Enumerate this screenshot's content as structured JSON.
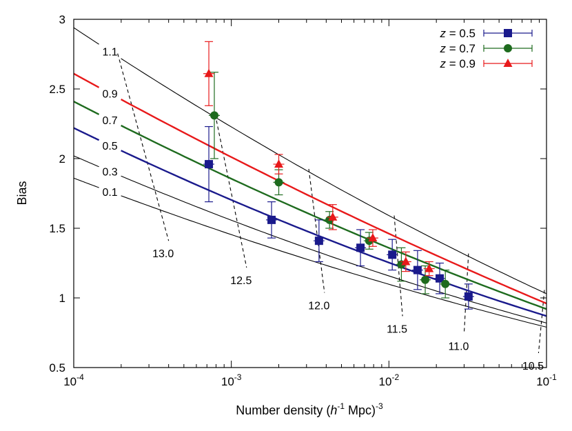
{
  "chart_data": {
    "type": "scatter",
    "xlabel_parts": [
      "Number density (",
      "h",
      "-1",
      " Mpc)",
      "-3"
    ],
    "ylabel": "Bias",
    "xscale": "log",
    "xlim": [
      0.0001,
      0.1
    ],
    "ylim": [
      0.5,
      3
    ],
    "x_ticks": [
      {
        "value": 0.0001,
        "base": "10",
        "exp": "-4"
      },
      {
        "value": 0.001,
        "base": "10",
        "exp": "-3"
      },
      {
        "value": 0.01,
        "base": "10",
        "exp": "-2"
      },
      {
        "value": 0.1,
        "base": "10",
        "exp": "-1"
      }
    ],
    "y_ticks": [
      {
        "value": 0.5,
        "label": "0.5"
      },
      {
        "value": 1,
        "label": "1"
      },
      {
        "value": 1.5,
        "label": "1.5"
      },
      {
        "value": 2,
        "label": "2"
      },
      {
        "value": 2.5,
        "label": "2.5"
      },
      {
        "value": 3,
        "label": "3"
      }
    ],
    "grid": false,
    "legend_position": "top-right",
    "series": [
      {
        "z_symbol": "z",
        "label": " = 0.5",
        "color": "#1a1a8c",
        "marker": "square",
        "points": [
          {
            "x": 0.00072,
            "y": 1.96,
            "yerr": 0.27
          },
          {
            "x": 0.0018,
            "y": 1.56,
            "yerr": 0.13
          },
          {
            "x": 0.0036,
            "y": 1.41,
            "yerr": 0.15
          },
          {
            "x": 0.0066,
            "y": 1.36,
            "yerr": 0.13
          },
          {
            "x": 0.0105,
            "y": 1.31,
            "yerr": 0.11
          },
          {
            "x": 0.0152,
            "y": 1.2,
            "yerr": 0.14
          },
          {
            "x": 0.021,
            "y": 1.14,
            "yerr": 0.11
          },
          {
            "x": 0.032,
            "y": 1.01,
            "yerr": 0.09
          }
        ]
      },
      {
        "z_symbol": "z",
        "label": " = 0.7",
        "color": "#1e6b1e",
        "marker": "circle",
        "points": [
          {
            "x": 0.00078,
            "y": 2.31,
            "yerr": 0.31
          },
          {
            "x": 0.002,
            "y": 1.83,
            "yerr": 0.09
          },
          {
            "x": 0.0042,
            "y": 1.56,
            "yerr": 0.06
          },
          {
            "x": 0.0075,
            "y": 1.41,
            "yerr": 0.06
          },
          {
            "x": 0.012,
            "y": 1.24,
            "yerr": 0.12
          },
          {
            "x": 0.017,
            "y": 1.13,
            "yerr": 0.1
          },
          {
            "x": 0.0228,
            "y": 1.1,
            "yerr": 0.1
          }
        ]
      },
      {
        "z_symbol": "z",
        "label": " = 0.9",
        "color": "#e8191a",
        "marker": "triangle",
        "points": [
          {
            "x": 0.00072,
            "y": 2.61,
            "yerr": 0.23
          },
          {
            "x": 0.002,
            "y": 1.96,
            "yerr": 0.07
          },
          {
            "x": 0.0044,
            "y": 1.58,
            "yerr": 0.09
          },
          {
            "x": 0.0079,
            "y": 1.43,
            "yerr": 0.06
          },
          {
            "x": 0.0128,
            "y": 1.26,
            "yerr": 0.07
          },
          {
            "x": 0.018,
            "y": 1.21,
            "yerr": 0.05
          }
        ]
      }
    ],
    "model_curves": [
      {
        "label": "1.1",
        "color": "#000000",
        "b_low": 2.94,
        "b_mid": 1.9,
        "b_high": 1.03
      },
      {
        "label": "0.9",
        "color": "#e8191a",
        "b_low": 2.61,
        "b_mid": 1.73,
        "b_high": 0.96
      },
      {
        "label": "0.7",
        "color": "#1e6b1e",
        "b_low": 2.41,
        "b_mid": 1.6,
        "b_high": 0.92
      },
      {
        "label": "0.5",
        "color": "#1a1a8c",
        "b_low": 2.22,
        "b_mid": 1.47,
        "b_high": 0.87
      },
      {
        "label": "0.3",
        "color": "#000000",
        "b_low": 2.02,
        "b_mid": 1.35,
        "b_high": 0.82
      },
      {
        "label": "0.1",
        "color": "#000000",
        "b_low": 1.86,
        "b_mid": 1.27,
        "b_high": 0.79
      }
    ],
    "mass_contours": [
      {
        "label": "13.0",
        "x_top": 0.00019,
        "x_bot": 0.0004
      },
      {
        "label": "12.5",
        "x_top": 0.00079,
        "x_bot": 0.00125
      },
      {
        "label": "12.0",
        "x_top": 0.0031,
        "x_bot": 0.0039
      },
      {
        "label": "11.5",
        "x_top": 0.0108,
        "x_bot": 0.0122
      },
      {
        "label": "11.0",
        "x_top": 0.032,
        "x_bot": 0.03
      },
      {
        "label": "10.5",
        "x_top": 0.097,
        "x_bot": 0.089
      }
    ]
  }
}
